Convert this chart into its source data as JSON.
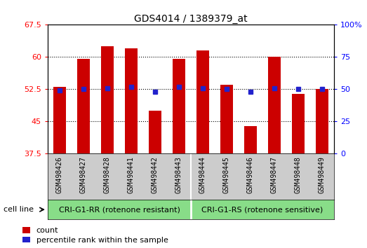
{
  "title": "GDS4014 / 1389379_at",
  "samples": [
    "GSM498426",
    "GSM498427",
    "GSM498428",
    "GSM498441",
    "GSM498442",
    "GSM498443",
    "GSM498444",
    "GSM498445",
    "GSM498446",
    "GSM498447",
    "GSM498448",
    "GSM498449"
  ],
  "count_values": [
    53.0,
    59.5,
    62.5,
    62.0,
    47.5,
    59.5,
    61.5,
    53.5,
    44.0,
    60.0,
    51.5,
    52.5
  ],
  "percentile_values": [
    49.0,
    50.0,
    51.0,
    52.0,
    48.0,
    52.0,
    51.0,
    50.0,
    48.0,
    51.0,
    50.0,
    50.0
  ],
  "group1_label": "CRI-G1-RR (rotenone resistant)",
  "group2_label": "CRI-G1-RS (rotenone sensitive)",
  "group1_count": 6,
  "group2_count": 6,
  "ylim_left": [
    37.5,
    67.5
  ],
  "ylim_right": [
    0,
    100
  ],
  "yticks_left": [
    37.5,
    45.0,
    52.5,
    60.0,
    67.5
  ],
  "yticks_right": [
    0,
    25,
    50,
    75,
    100
  ],
  "bar_color": "#cc0000",
  "dot_color": "#2222cc",
  "group_bg_color": "#88dd88",
  "tick_area_bg": "#cccccc",
  "bar_width": 0.55,
  "bar_bottom": 37.5,
  "legend_count_label": "count",
  "legend_percentile_label": "percentile rank within the sample",
  "cell_line_label": "cell line"
}
